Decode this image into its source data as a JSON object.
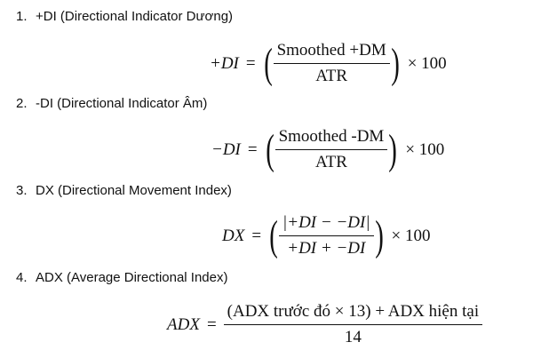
{
  "items": [
    {
      "number": "1.",
      "title": "+DI (Directional Indicator Dương)",
      "lhs": "+DI",
      "eq": "=",
      "numerator": "Smoothed +DM",
      "denominator": "ATR",
      "suffix": "× 100"
    },
    {
      "number": "2.",
      "title": "-DI (Directional Indicator Âm)",
      "lhs": "−DI",
      "eq": "=",
      "numerator": "Smoothed -DM",
      "denominator": "ATR",
      "suffix": "× 100"
    },
    {
      "number": "3.",
      "title": "DX (Directional Movement Index)",
      "lhs": "DX",
      "eq": "=",
      "numerator": "|+DI − −DI|",
      "denominator": "+DI + −DI",
      "suffix": "× 100"
    },
    {
      "number": "4.",
      "title": "ADX (Average Directional Index)",
      "lhs": "ADX",
      "eq": "=",
      "numerator": "(ADX trước đó × 13) + ADX hiện tại",
      "denominator": "14",
      "suffix": ""
    }
  ],
  "parens": {
    "open": "(",
    "close": ")"
  }
}
